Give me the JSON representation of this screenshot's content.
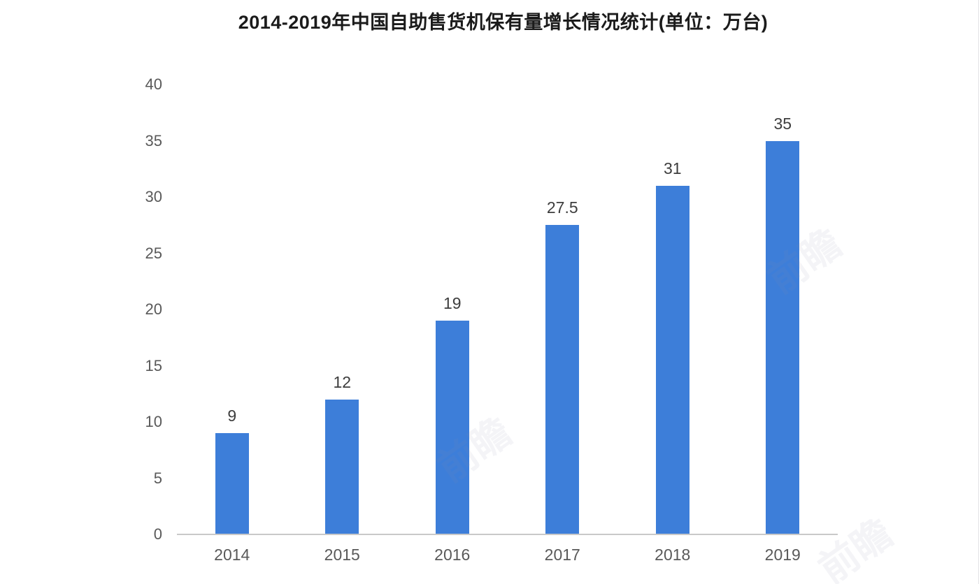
{
  "chart_data": {
    "type": "bar",
    "title": "2014-2019年中国自助售货机保有量增长情况统计(单位：万台)",
    "categories": [
      "2014",
      "2015",
      "2016",
      "2017",
      "2018",
      "2019"
    ],
    "values": [
      9,
      12,
      19,
      27.5,
      31,
      35
    ],
    "value_labels": [
      "9",
      "12",
      "19",
      "27.5",
      "31",
      "35"
    ],
    "xlabel": "",
    "ylabel": "",
    "ylim": [
      0,
      40
    ],
    "yticks": [
      0,
      5,
      10,
      15,
      20,
      25,
      30,
      35,
      40
    ],
    "grid": false,
    "legend_position": "none",
    "bar_color": "#3d7ed9",
    "axis_line_color": "#c9c9c9",
    "value_label_color": "#3d3d3d",
    "tick_label_color": "#595959",
    "title_color": "#1b1b1b"
  },
  "watermark": {
    "text": "前瞻"
  }
}
